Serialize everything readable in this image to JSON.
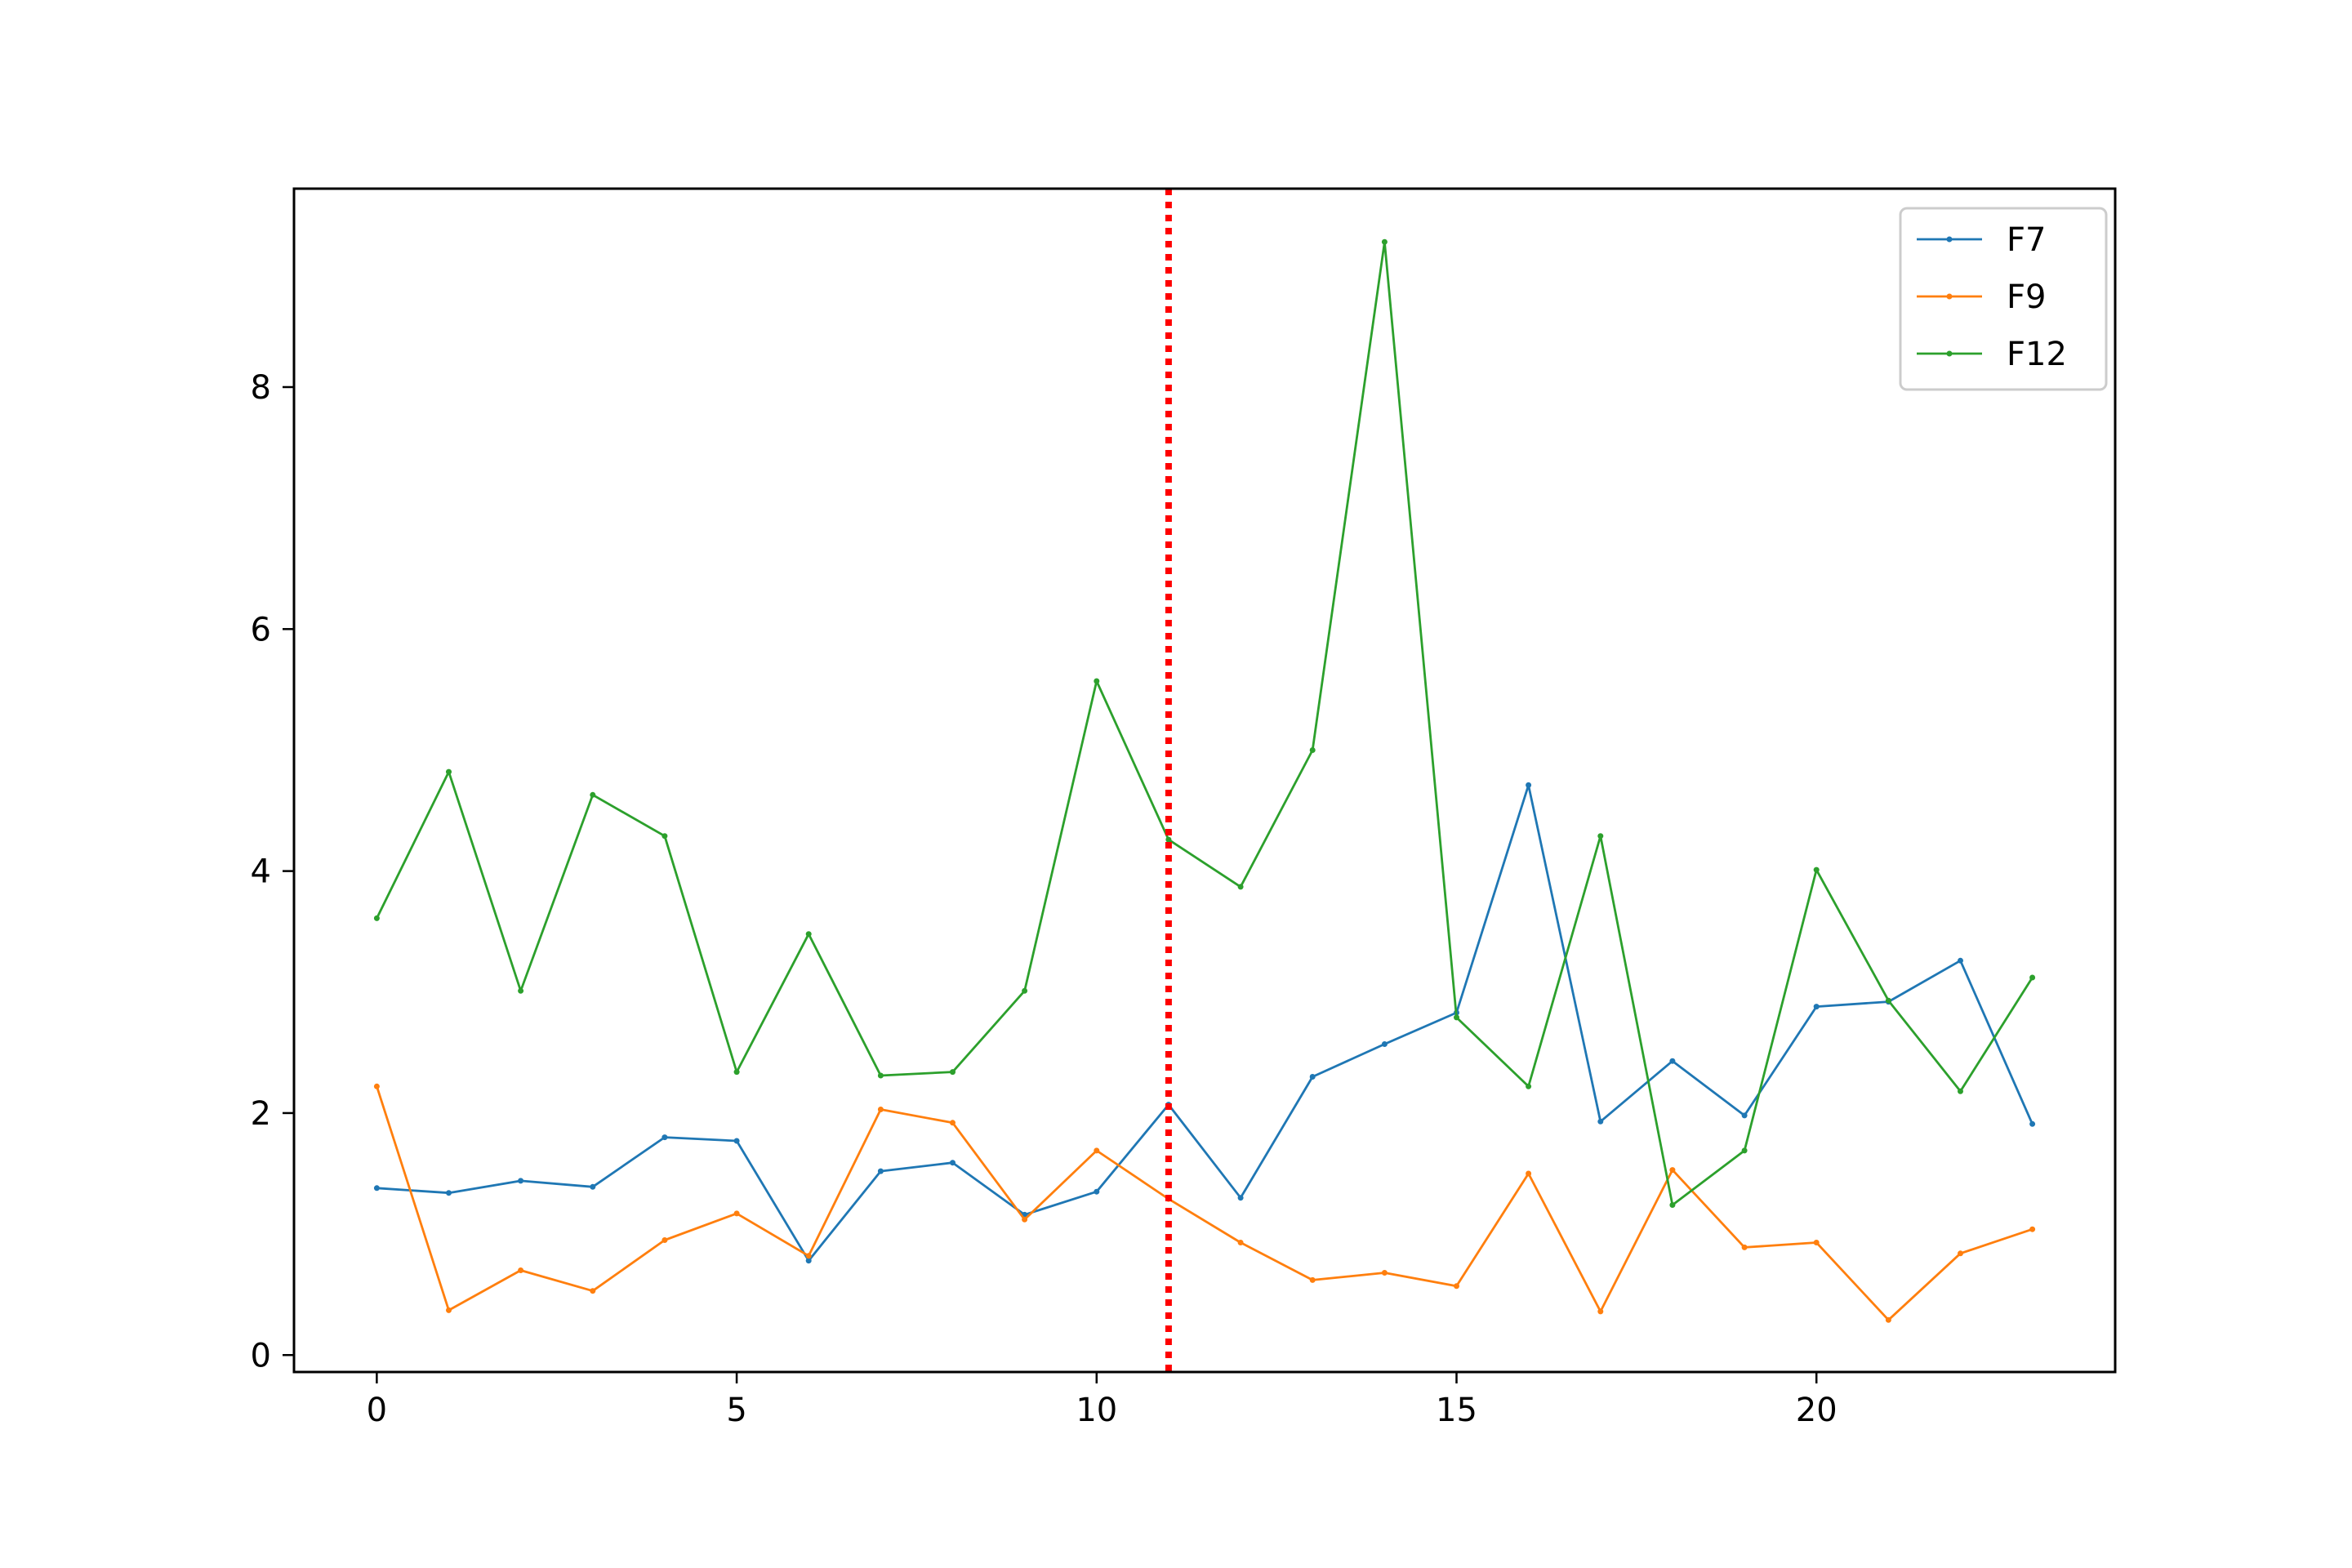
{
  "chart_data": {
    "type": "line",
    "title": "",
    "xlabel": "",
    "ylabel": "",
    "xlim": [
      -1.15,
      24.15
    ],
    "ylim": [
      -0.14,
      9.64
    ],
    "xticks": [
      0,
      5,
      10,
      15,
      20
    ],
    "yticks": [
      0,
      2,
      4,
      6,
      8
    ],
    "xtick_labels": [
      "0",
      "5",
      "10",
      "15",
      "20"
    ],
    "ytick_labels": [
      "0",
      "2",
      "4",
      "6",
      "8"
    ],
    "grid": false,
    "legend_position": "top-right",
    "vline": {
      "x": 11,
      "color": "#ff0000",
      "style": "dotted"
    },
    "x": [
      0,
      1,
      2,
      3,
      4,
      5,
      6,
      7,
      8,
      9,
      10,
      11,
      12,
      13,
      14,
      15,
      16,
      17,
      18,
      19,
      20,
      21,
      22,
      23
    ],
    "series": [
      {
        "name": "F7",
        "color": "#1f77b4",
        "values": [
          1.38,
          1.34,
          1.44,
          1.39,
          1.8,
          1.77,
          0.78,
          1.52,
          1.59,
          1.16,
          1.35,
          2.07,
          1.3,
          2.3,
          2.57,
          2.83,
          4.71,
          1.93,
          2.43,
          1.98,
          2.88,
          2.92,
          3.26,
          1.91
        ]
      },
      {
        "name": "F9",
        "color": "#ff7f0e",
        "values": [
          2.22,
          0.37,
          0.7,
          0.53,
          0.95,
          1.17,
          0.82,
          2.03,
          1.92,
          1.12,
          1.69,
          1.29,
          0.93,
          0.62,
          0.68,
          0.57,
          1.5,
          0.36,
          1.53,
          0.89,
          0.93,
          0.29,
          0.84,
          1.04
        ]
      },
      {
        "name": "F12",
        "color": "#2ca02c",
        "values": [
          3.61,
          4.82,
          3.01,
          4.63,
          4.29,
          2.34,
          3.48,
          2.31,
          2.34,
          3.01,
          5.57,
          4.26,
          3.87,
          5.0,
          9.2,
          2.79,
          2.22,
          4.29,
          1.24,
          1.69,
          4.01,
          2.93,
          2.18,
          3.12
        ]
      }
    ]
  }
}
